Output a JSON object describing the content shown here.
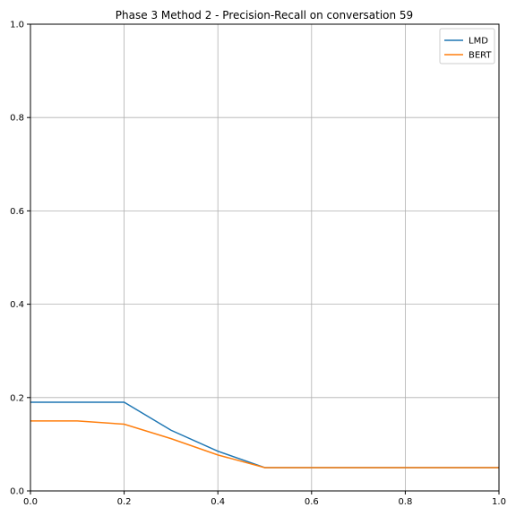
{
  "chart_data": {
    "type": "line",
    "title": "Phase 3 Method 2 - Precision-Recall on conversation 59",
    "xlabel": "",
    "ylabel": "",
    "xlim": [
      0.0,
      1.0
    ],
    "ylim": [
      0.0,
      1.0
    ],
    "x_ticks": [
      "0.0",
      "0.2",
      "0.4",
      "0.6",
      "0.8",
      "1.0"
    ],
    "y_ticks": [
      "0.0",
      "0.2",
      "0.4",
      "0.6",
      "0.8",
      "1.0"
    ],
    "grid": true,
    "legend_position": "top-right",
    "series": [
      {
        "name": "LMD",
        "color": "#1f77b4",
        "x": [
          0.0,
          0.1,
          0.2,
          0.3,
          0.4,
          0.5,
          0.6,
          0.7,
          0.8,
          0.9,
          1.0
        ],
        "y": [
          0.19,
          0.19,
          0.19,
          0.13,
          0.085,
          0.05,
          0.05,
          0.05,
          0.05,
          0.05,
          0.05
        ]
      },
      {
        "name": "BERT",
        "color": "#ff7f0e",
        "x": [
          0.0,
          0.1,
          0.2,
          0.3,
          0.4,
          0.5,
          0.6,
          0.7,
          0.8,
          0.9,
          1.0
        ],
        "y": [
          0.15,
          0.15,
          0.143,
          0.112,
          0.077,
          0.05,
          0.05,
          0.05,
          0.05,
          0.05,
          0.05
        ]
      }
    ]
  }
}
